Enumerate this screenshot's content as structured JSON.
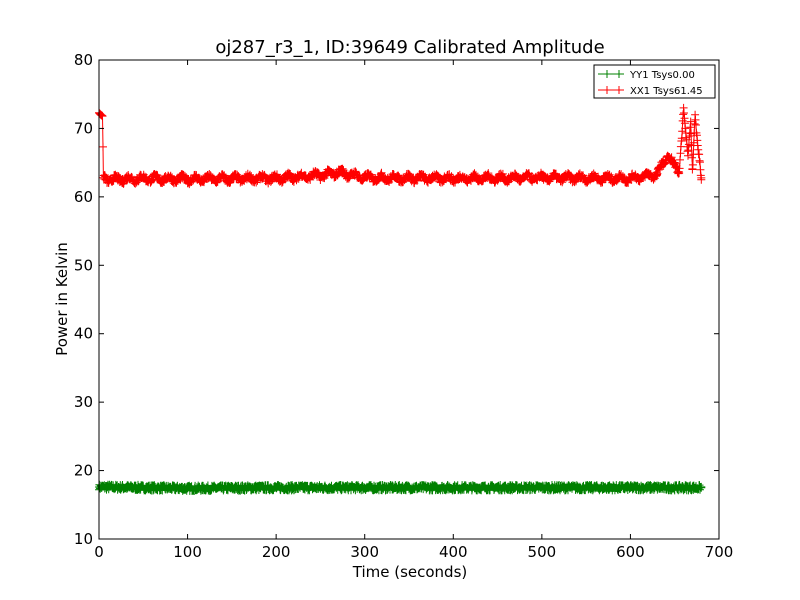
{
  "chart_data": {
    "type": "line",
    "title": "oj287_r3_1, ID:39649 Calibrated Amplitude",
    "xlabel": "Time (seconds)",
    "ylabel": "Power in Kelvin",
    "xlim": [
      0,
      700
    ],
    "ylim": [
      10,
      80
    ],
    "xticks": [
      0,
      100,
      200,
      300,
      400,
      500,
      600,
      700
    ],
    "yticks": [
      10,
      20,
      30,
      40,
      50,
      60,
      70,
      80
    ],
    "grid": false,
    "legend_position": "top-right",
    "marker": "+",
    "series": [
      {
        "name": "YY1 Tsys0.00",
        "color": "#008000",
        "x_range": [
          0,
          680
        ],
        "baseline": 17.5,
        "jitter": 0.4,
        "points": [
          [
            0,
            17.6
          ],
          [
            100,
            17.4
          ],
          [
            200,
            17.5
          ],
          [
            300,
            17.5
          ],
          [
            400,
            17.5
          ],
          [
            500,
            17.5
          ],
          [
            600,
            17.5
          ],
          [
            680,
            17.5
          ]
        ]
      },
      {
        "name": "XX1 Tsys61.45",
        "color": "#ff0000",
        "x_range": [
          0,
          680
        ],
        "baseline": 62.7,
        "jitter": 0.4,
        "oscillation_period": 15,
        "points": [
          [
            0,
            72.3
          ],
          [
            2,
            72.0
          ],
          [
            4,
            71.8
          ],
          [
            5,
            62.8
          ],
          [
            10,
            62.5
          ],
          [
            50,
            62.7
          ],
          [
            100,
            62.6
          ],
          [
            200,
            62.7
          ],
          [
            255,
            63.2
          ],
          [
            270,
            63.6
          ],
          [
            300,
            62.8
          ],
          [
            400,
            62.7
          ],
          [
            500,
            62.8
          ],
          [
            600,
            62.7
          ],
          [
            630,
            63.3
          ],
          [
            642,
            66.0
          ],
          [
            648,
            65.0
          ],
          [
            655,
            63.5
          ],
          [
            660,
            73.0
          ],
          [
            662,
            70.0
          ],
          [
            665,
            66.0
          ],
          [
            668,
            71.0
          ],
          [
            670,
            64.0
          ],
          [
            673,
            72.0
          ],
          [
            676,
            67.5
          ],
          [
            680,
            62.5
          ]
        ]
      }
    ]
  }
}
